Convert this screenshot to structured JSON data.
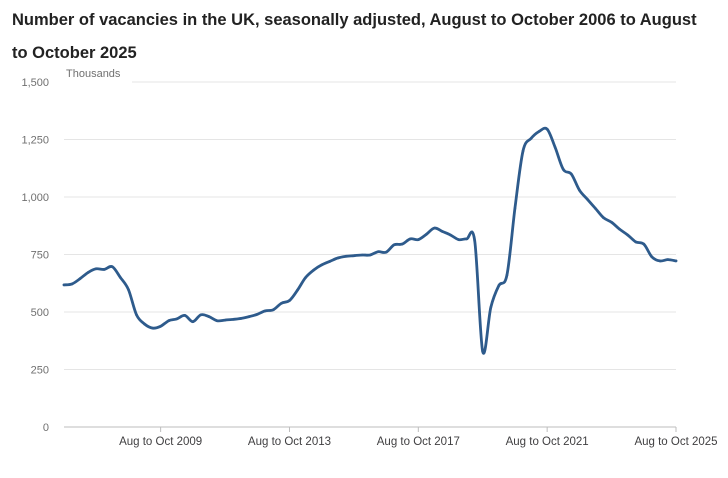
{
  "chart_data": {
    "type": "line",
    "title": "Number of vacancies in the UK, seasonally adjusted, August to October 2006 to August to October 2025",
    "ylabel": "Thousands",
    "xlabel": "",
    "ylim": [
      0,
      1500
    ],
    "y_ticks": [
      0,
      250,
      500,
      750,
      1000,
      1250,
      1500
    ],
    "y_tick_labels": [
      "0",
      "250",
      "500",
      "750",
      "1,000",
      "1,250",
      "1,500"
    ],
    "x_range": [
      2006.75,
      2025.75
    ],
    "x_ticks": [
      2009.75,
      2013.75,
      2017.75,
      2021.75,
      2025.75
    ],
    "x_tick_labels": [
      "Aug to Oct 2009",
      "Aug to Oct 2013",
      "Aug to Oct 2017",
      "Aug to Oct 2021",
      "Aug to Oct 2025"
    ],
    "grid": "horizontal",
    "line_color": "#2e5b8c",
    "series": [
      {
        "x": [
          2006.75,
          2007.0,
          2007.25,
          2007.5,
          2007.75,
          2008.0,
          2008.25,
          2008.5,
          2008.75,
          2009.0,
          2009.25,
          2009.5,
          2009.75,
          2010.0,
          2010.25,
          2010.5,
          2010.75,
          2011.0,
          2011.25,
          2011.5,
          2011.75,
          2012.0,
          2012.25,
          2012.5,
          2012.75,
          2013.0,
          2013.25,
          2013.5,
          2013.75,
          2014.0,
          2014.25,
          2014.5,
          2014.75,
          2015.0,
          2015.25,
          2015.5,
          2015.75,
          2016.0,
          2016.25,
          2016.5,
          2016.75,
          2017.0,
          2017.25,
          2017.5,
          2017.75,
          2018.0,
          2018.25,
          2018.5,
          2018.75,
          2019.0,
          2019.25,
          2019.5,
          2019.75,
          2020.0,
          2020.25,
          2020.5,
          2020.75,
          2021.0,
          2021.25,
          2021.5,
          2021.75,
          2022.0,
          2022.25,
          2022.5,
          2022.75,
          2023.0,
          2023.25,
          2023.5,
          2023.75,
          2024.0,
          2024.25,
          2024.5,
          2024.75,
          2025.0,
          2025.25,
          2025.5,
          2025.75
        ],
        "values": [
          618,
          622,
          645,
          672,
          688,
          685,
          697,
          650,
          598,
          488,
          448,
          430,
          438,
          462,
          470,
          485,
          458,
          488,
          480,
          462,
          465,
          468,
          472,
          480,
          490,
          505,
          510,
          538,
          550,
          595,
          650,
          682,
          705,
          720,
          735,
          742,
          745,
          748,
          748,
          762,
          760,
          792,
          795,
          818,
          815,
          838,
          865,
          850,
          835,
          815,
          818,
          810,
          328,
          520,
          615,
          660,
          950,
          1200,
          1255,
          1285,
          1295,
          1215,
          1120,
          1100,
          1030,
          990,
          950,
          910,
          890,
          860,
          835,
          805,
          795,
          740,
          722,
          728,
          722
        ]
      }
    ]
  }
}
